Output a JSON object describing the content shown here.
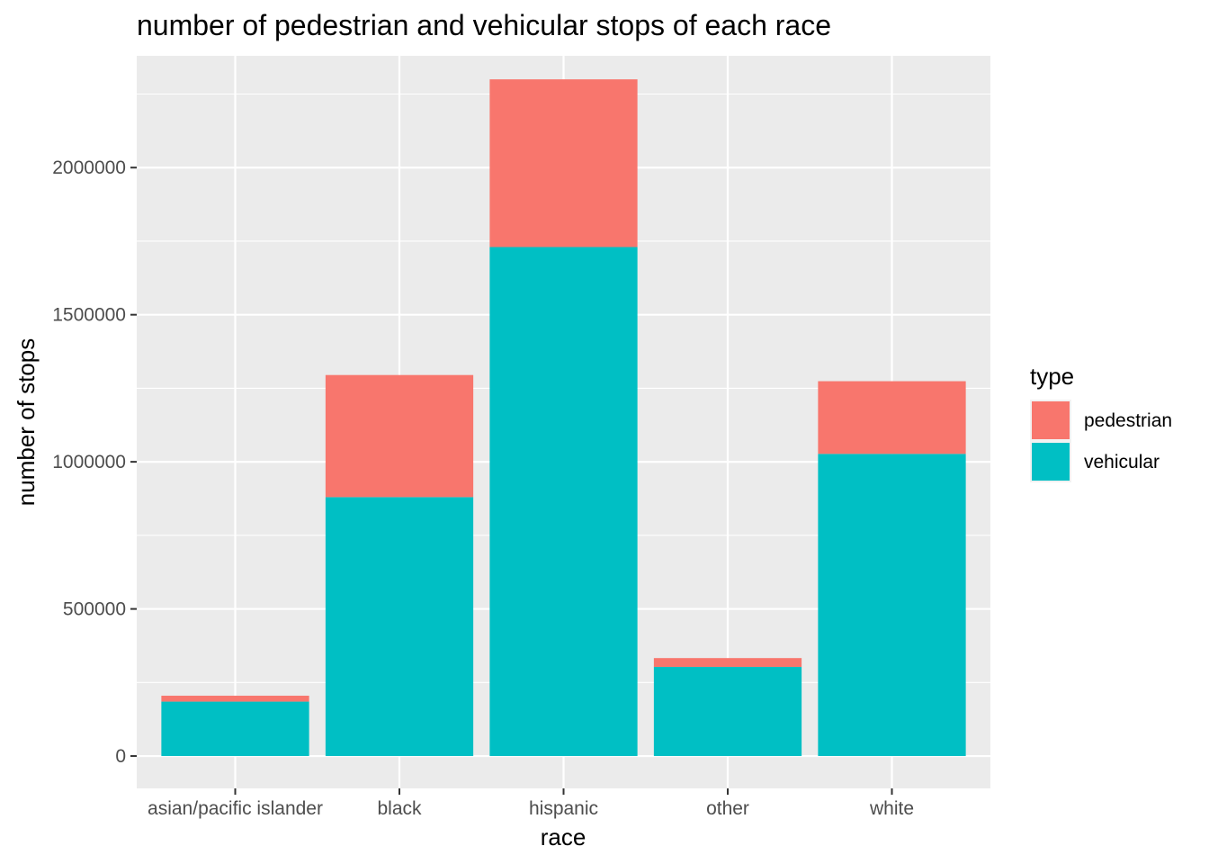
{
  "chart_data": {
    "type": "bar",
    "stacked": true,
    "title": "number of pedestrian and vehicular stops of each race",
    "xlabel": "race",
    "ylabel": "number of stops",
    "categories": [
      "asian/pacific islander",
      "black",
      "hispanic",
      "other",
      "white"
    ],
    "series": [
      {
        "name": "pedestrian",
        "values": [
          20000,
          415000,
          570000,
          30000,
          247000
        ]
      },
      {
        "name": "vehicular",
        "values": [
          185000,
          880000,
          1730000,
          303000,
          1027000
        ]
      }
    ],
    "ylim": [
      -110000,
      2380000
    ],
    "yticks": [
      0,
      500000,
      1000000,
      1500000,
      2000000
    ],
    "ytick_labels": [
      "0",
      "500000",
      "1000000",
      "1500000",
      "2000000"
    ],
    "grid": true,
    "legend": {
      "title": "type",
      "position": "right",
      "entries": [
        "pedestrian",
        "vehicular"
      ]
    },
    "colors": {
      "pedestrian": "#f8766d",
      "vehicular": "#00bfc4",
      "panel_background": "#ebebeb",
      "grid": "#ffffff"
    }
  }
}
